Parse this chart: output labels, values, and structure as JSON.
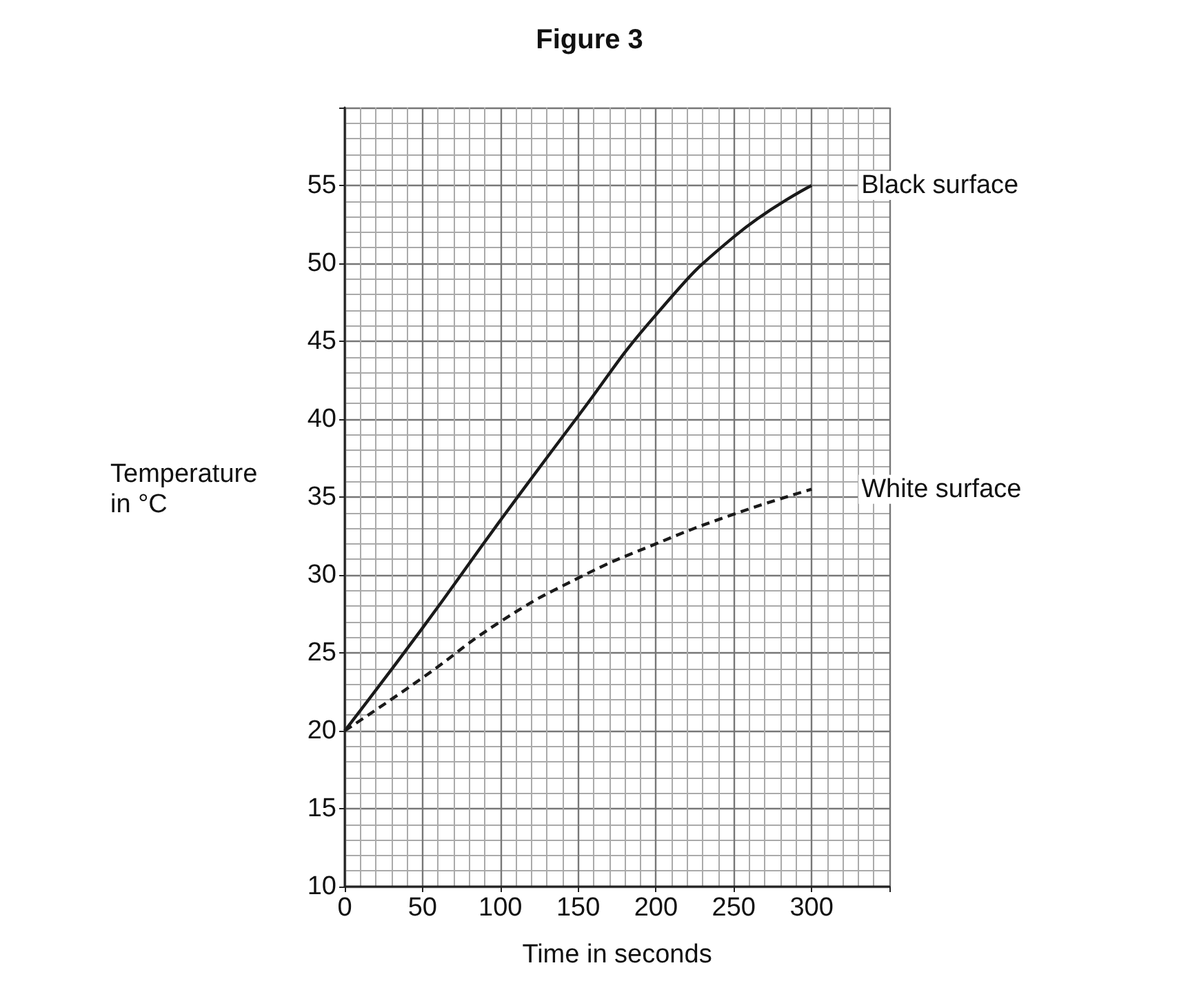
{
  "chart_data": {
    "type": "line",
    "title": "Figure 3",
    "xlabel": "Time in seconds",
    "ylabel": "Temperature\nin °C",
    "x": [
      0,
      50,
      100,
      150,
      200,
      250,
      300
    ],
    "series": [
      {
        "name": "Black surface",
        "color": "#1a1a1a",
        "line_style": "solid",
        "values": [
          20,
          26.6,
          33.5,
          40.2,
          46.7,
          51.7,
          55
        ]
      },
      {
        "name": "White surface",
        "color": "#1a1a1a",
        "line_style": "dashed",
        "values": [
          20,
          23.4,
          27,
          29.8,
          32,
          33.9,
          35.5
        ]
      }
    ],
    "xlim": [
      0,
      350
    ],
    "xticks": [
      0,
      50,
      100,
      150,
      200,
      250,
      300
    ],
    "ylim": [
      10,
      60
    ],
    "yticks": [
      10,
      15,
      20,
      25,
      30,
      35,
      40,
      45,
      50,
      55
    ],
    "grid": true,
    "marker": "none",
    "legend": false
  }
}
